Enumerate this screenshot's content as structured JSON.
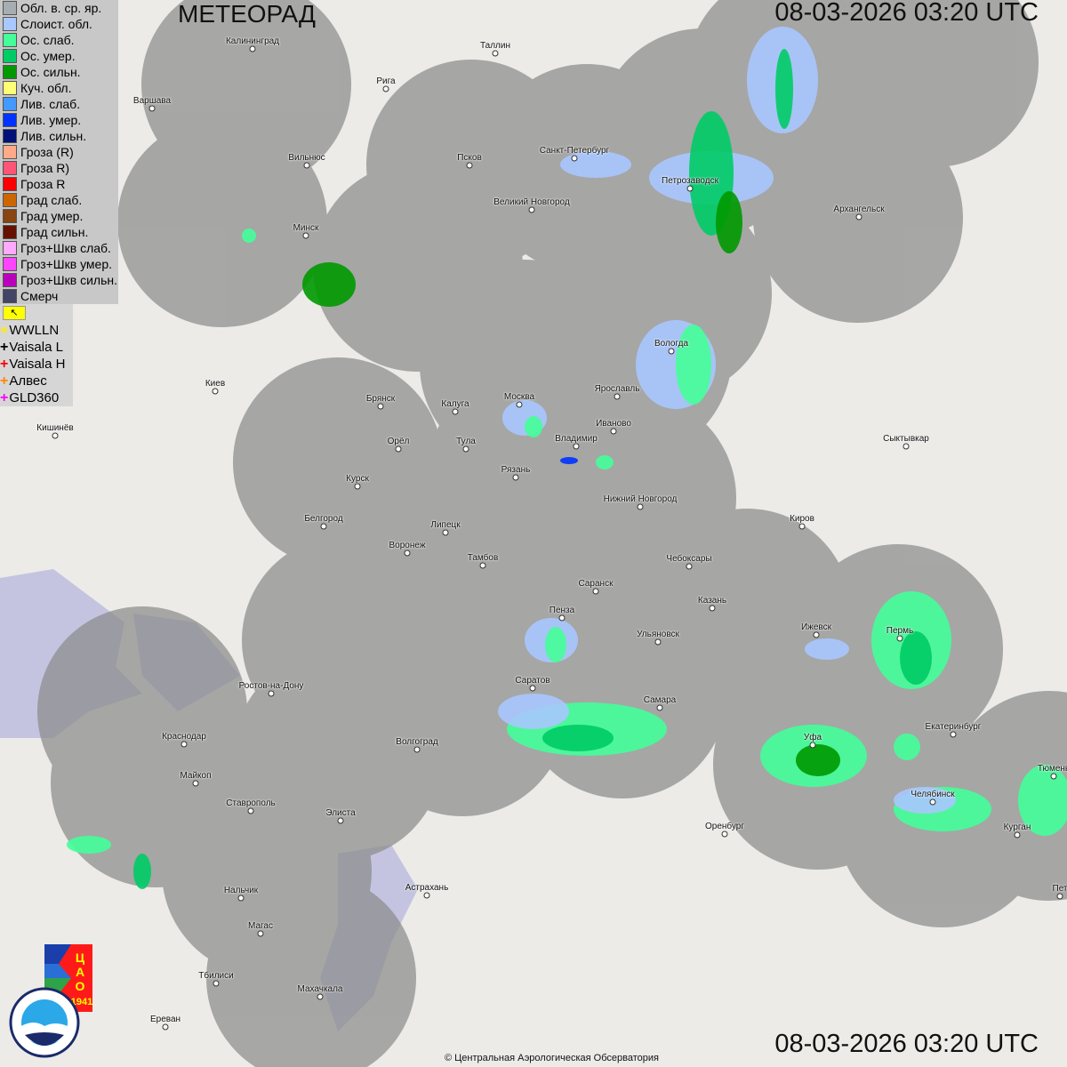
{
  "header": {
    "title": "МЕТЕОРАД",
    "timestamp_top": "08-03-2026  03:20 UTC",
    "timestamp_bottom": "08-03-2026  03:20 UTC"
  },
  "legend": [
    {
      "label": "Обл. в. ср. яр.",
      "color": "#a6aeb2"
    },
    {
      "label": "Слоист. обл.",
      "color": "#a8c8ff"
    },
    {
      "label": "Ос. слаб.",
      "color": "#44ff99"
    },
    {
      "label": "Ос. умер.",
      "color": "#00cc66"
    },
    {
      "label": "Ос. сильн.",
      "color": "#009900"
    },
    {
      "label": "Куч. обл.",
      "color": "#ffff77"
    },
    {
      "label": "Лив. слаб.",
      "color": "#4499ff"
    },
    {
      "label": "Лив. умер.",
      "color": "#0033ff"
    },
    {
      "label": "Лив. сильн.",
      "color": "#001177"
    },
    {
      "label": "Гроза (R)",
      "color": "#ffaa88"
    },
    {
      "label": "Гроза R)",
      "color": "#ff5577"
    },
    {
      "label": "Гроза R",
      "color": "#ff0000"
    },
    {
      "label": "Град слаб.",
      "color": "#cc6600"
    },
    {
      "label": "Град умер.",
      "color": "#884411"
    },
    {
      "label": "Град сильн.",
      "color": "#661100"
    },
    {
      "label": "Гроз+Шкв слаб.",
      "color": "#ffaaff"
    },
    {
      "label": "Гроз+Шкв умер.",
      "color": "#ff44ff"
    },
    {
      "label": "Гроз+Шкв сильн.",
      "color": "#bb00bb"
    },
    {
      "label": "Смерч",
      "color": "#444466"
    }
  ],
  "lightning_networks": [
    {
      "label": "WWLLN",
      "color": "#ffee00"
    },
    {
      "label": "Vaisala L",
      "color": "#000000"
    },
    {
      "label": "Vaisala H",
      "color": "#ff0000"
    },
    {
      "label": "Алвес",
      "color": "#ff8800"
    },
    {
      "label": "GLD360",
      "color": "#ff00ff"
    }
  ],
  "cities": [
    "Калининград",
    "Таллин",
    "Рига",
    "Варшава",
    "Вильнюс",
    "Псков",
    "Санкт-Петербург",
    "Петрозаводск",
    "Великий Новгород",
    "Архангельск",
    "Минск",
    "Вологда",
    "Ярославль",
    "Киев",
    "Брянск",
    "Калуга",
    "Москва",
    "Иваново",
    "Кишинёв",
    "Орёл",
    "Тула",
    "Владимир",
    "Сыктывкар",
    "Рязань",
    "Курск",
    "Нижний Новгород",
    "Белгород",
    "Липецк",
    "Киров",
    "Воронеж",
    "Тамбов",
    "Чебоксары",
    "Саранск",
    "Пенза",
    "Казань",
    "Ижевск",
    "Пермь",
    "Ульяновск",
    "Саратов",
    "Ростов-на-Дону",
    "Самара",
    "Екатеринбург",
    "Краснодар",
    "Волгоград",
    "Уфа",
    "Майкоп",
    "Тюмень",
    "Челябинск",
    "Ставрополь",
    "Элиста",
    "Курган",
    "Оренбург",
    "Астрахань",
    "Нальчик",
    "Магас",
    "Тбилиси",
    "Махачкала",
    "Ереван",
    "Пет"
  ],
  "logos": {
    "tsao": "ЦАО 1941",
    "roshydromet": "РОСГИДРОМЕТ ROSHYDROMET"
  },
  "footer": {
    "copyright": "© Центральная Аэрологическая Обсерватория"
  },
  "colors": {
    "radar_coverage": "#8c8c8c",
    "water": "#c4c4e0",
    "land": "#ecebe8"
  }
}
